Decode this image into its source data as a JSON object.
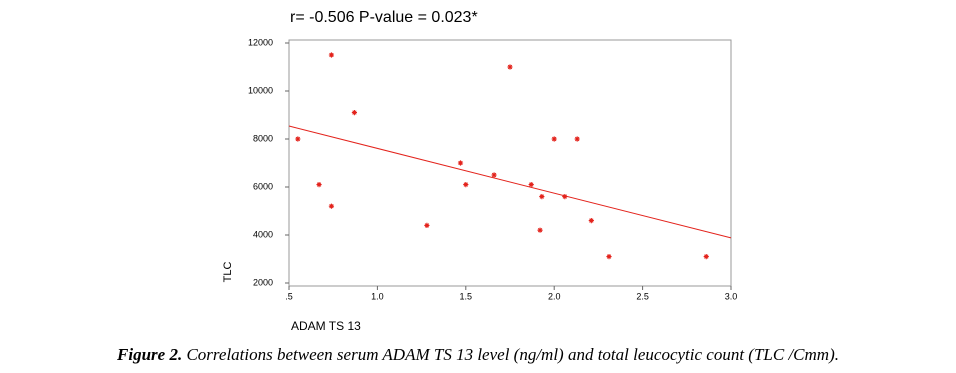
{
  "chart_data": {
    "type": "scatter",
    "title": "r= -0.506   P-value = 0.023*",
    "x_label": "ADAM TS 13",
    "y_label": "TLC",
    "x": [
      0.55,
      0.74,
      0.87,
      0.67,
      0.74,
      1.28,
      1.47,
      1.5,
      1.75,
      1.66,
      1.87,
      1.93,
      1.92,
      2.0,
      2.06,
      2.13,
      2.21,
      2.31,
      2.86
    ],
    "values": [
      8000,
      11500,
      9100,
      6100,
      5200,
      4400,
      7000,
      6100,
      11000,
      6500,
      6100,
      5600,
      4200,
      8000,
      5600,
      8000,
      4600,
      3100,
      3100
    ],
    "color": "#e3231c",
    "trend_line": {
      "x": [
        0.5,
        3.0
      ],
      "y": [
        8540,
        3880
      ],
      "color": "#e3231c"
    },
    "xlim": [
      0.5,
      3.0
    ],
    "ylim": [
      2000,
      12000
    ],
    "xticks": [
      {
        "value": 0.5,
        "label": ".5"
      },
      {
        "value": 1.0,
        "label": "1.0"
      },
      1.5,
      {
        "value": 2.0,
        "label": "2.0"
      },
      2.5,
      {
        "value": 3.0,
        "label": "3.0"
      }
    ],
    "yticks": [
      2000,
      4000,
      6000,
      8000,
      10000,
      12000
    ]
  },
  "caption": {
    "label": "Figure 2.",
    "text": "Correlations between serum ADAM TS 13 level (ng/ml) and total leucocytic count (TLC /Cmm)."
  }
}
